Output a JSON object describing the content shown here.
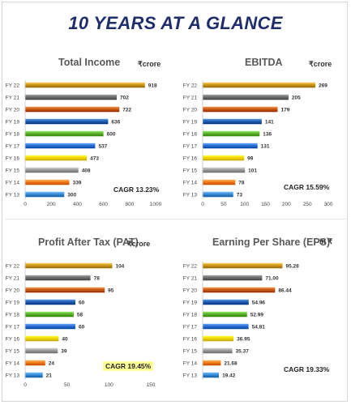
{
  "title": "10 YEARS AT A GLANCE",
  "colors": {
    "FY 22": "#c8961e",
    "FY 21": "#6e6e6e",
    "FY 20": "#c65a17",
    "FY 19": "#1f5fb0",
    "FY 18": "#5cb32e",
    "FY 17": "#2d6fd2",
    "FY 16": "#f2d600",
    "FY 15": "#9a9a9a",
    "FY 14": "#f07a1e",
    "FY 13": "#3a8ad6"
  },
  "panels": [
    {
      "title": "Total Income",
      "unit": "₹crore",
      "cagr": "CAGR 13.23%"
    },
    {
      "title": "EBITDA",
      "unit": "₹crore",
      "cagr": "CAGR 15.59%"
    },
    {
      "title": "Profit After Tax (PAT)",
      "unit": "₹crore",
      "cagr": "CAGR 19.45%"
    },
    {
      "title": "Earning Per Share (EPS)",
      "unit": "in ₹",
      "cagr": "CAGR 19.33%"
    }
  ],
  "chart_data": [
    {
      "type": "bar",
      "orientation": "horizontal",
      "title": "Total Income",
      "categories": [
        "FY 22",
        "FY 21",
        "FY 20",
        "FY 19",
        "FY 18",
        "FY 17",
        "FY 16",
        "FY 15",
        "FY 14",
        "FY 13"
      ],
      "values": [
        918,
        702,
        722,
        636,
        600,
        537,
        473,
        408,
        339,
        300
      ],
      "value_labels": [
        "918",
        "702",
        "722",
        "636",
        "600",
        "537",
        "473",
        "408",
        "339",
        "300"
      ],
      "xlim": [
        0,
        1000
      ],
      "xticks": [
        "0",
        "200",
        "400",
        "600",
        "800",
        "1000"
      ],
      "grid": false
    },
    {
      "type": "bar",
      "orientation": "horizontal",
      "title": "EBITDA",
      "categories": [
        "FY 22",
        "FY 21",
        "FY 20",
        "FY 19",
        "FY 18",
        "FY 17",
        "FY 16",
        "FY 15",
        "FY 14",
        "FY 13"
      ],
      "values": [
        269,
        205,
        179,
        141,
        136,
        131,
        99,
        101,
        78,
        73
      ],
      "value_labels": [
        "269",
        "205",
        "179",
        "141",
        "136",
        "131",
        "99",
        "101",
        "78",
        "73"
      ],
      "xlim": [
        0,
        300
      ],
      "xticks": [
        "0",
        "50",
        "100",
        "150",
        "200",
        "250",
        "300"
      ],
      "grid": false
    },
    {
      "type": "bar",
      "orientation": "horizontal",
      "title": "Profit After Tax (PAT)",
      "categories": [
        "FY 22",
        "FY 21",
        "FY 20",
        "FY 19",
        "FY 18",
        "FY 17",
        "FY 16",
        "FY 15",
        "FY 14",
        "FY 13"
      ],
      "values": [
        104,
        78,
        95,
        60,
        58,
        60,
        40,
        39,
        24,
        21
      ],
      "value_labels": [
        "104",
        "78",
        "95",
        "60",
        "58",
        "60",
        "40",
        "39",
        "24",
        "21"
      ],
      "xlim": [
        0,
        150
      ],
      "xticks": [
        "0",
        "50",
        "100",
        "150"
      ],
      "grid": false
    },
    {
      "type": "bar",
      "orientation": "horizontal",
      "title": "Earning Per Share (EPS)",
      "categories": [
        "FY 22",
        "FY 21",
        "FY 20",
        "FY 19",
        "FY 18",
        "FY 17",
        "FY 16",
        "FY 15",
        "FY 14",
        "FY 13"
      ],
      "values": [
        95.28,
        71.0,
        86.44,
        54.96,
        52.99,
        54.81,
        36.95,
        35.37,
        21.68,
        19.42
      ],
      "value_labels": [
        "95.28",
        "71.00",
        "86.44",
        "54.96",
        "52.99",
        "54.81",
        "36.95",
        "35.37",
        "21.68",
        "19.42"
      ],
      "xlim": [
        0,
        150
      ],
      "xticks": [],
      "grid": false
    }
  ]
}
